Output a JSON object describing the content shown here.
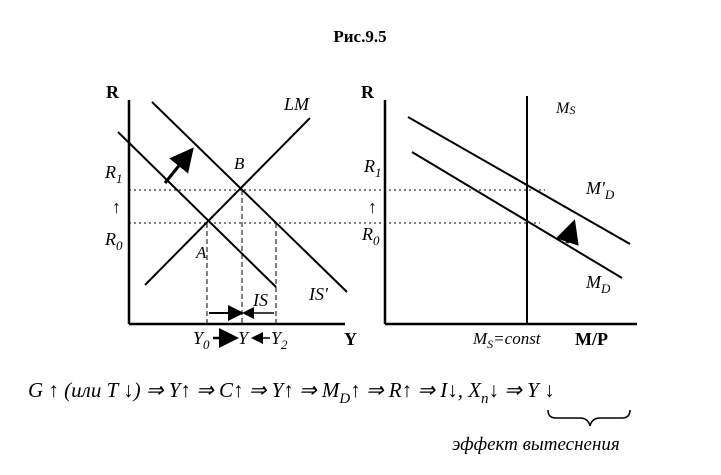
{
  "title": "Рис.9.5",
  "left_graph": {
    "y_axis": "R",
    "x_axis": "Y",
    "r1": "R",
    "r1_sub": "1",
    "r0": "R",
    "r0_sub": "0",
    "curve_lm": "LM",
    "curve_is": "IS",
    "curve_is_prime": "IS'",
    "point_a": "A",
    "point_b": "B",
    "y0": "Y",
    "y0_sub": "0",
    "y_mid": "Y",
    "y2": "Y",
    "y2_sub": "2"
  },
  "right_graph": {
    "y_axis": "R",
    "x_axis": "M/P",
    "r1": "R",
    "r1_sub": "1",
    "r0": "R",
    "r0_sub": "0",
    "ms_label": "M",
    "ms_sub": "S",
    "md_prime": "M'",
    "md_prime_sub": "D",
    "md": "M",
    "md_sub": "D",
    "ms_const": "M",
    "ms_const_sub": "S",
    "ms_const_tail": "=const"
  },
  "formula": {
    "p1": "G ↑ (или  T ↓) ⇒ Y↑ ⇒ C↑ ⇒ Y↑ ⇒ M",
    "md_sub": "D",
    "p2": "↑ ⇒ R↑ ⇒ I↓, X",
    "xn_sub": "n",
    "p3": "↓ ⇒ Y ↓"
  },
  "effect_label": "эффект вытеснения"
}
